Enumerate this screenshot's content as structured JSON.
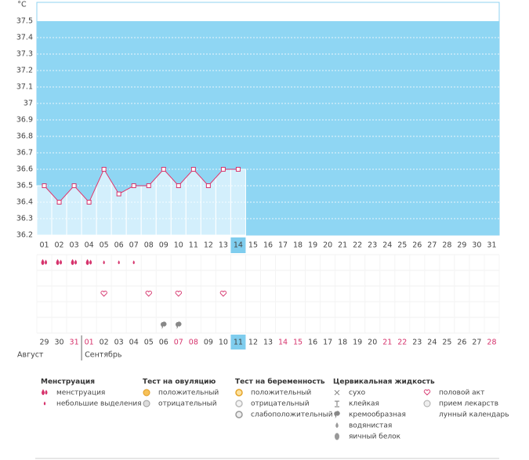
{
  "chart_data": {
    "type": "line",
    "unit": "°C",
    "categories": [
      "01",
      "02",
      "03",
      "04",
      "05",
      "06",
      "07",
      "08",
      "09",
      "10",
      "11",
      "12",
      "13",
      "14",
      "15",
      "16",
      "17",
      "18",
      "19",
      "20",
      "21",
      "22",
      "23",
      "24",
      "25",
      "26",
      "27",
      "28",
      "29",
      "30",
      "31"
    ],
    "series": [
      {
        "name": "temperature",
        "color": "#d6336c",
        "values": [
          36.5,
          36.4,
          36.5,
          36.4,
          36.6,
          36.45,
          36.5,
          36.5,
          36.6,
          36.5,
          36.6,
          36.5,
          36.6,
          36.6,
          null,
          null,
          null,
          null,
          null,
          null,
          null,
          null,
          null,
          null,
          null,
          null,
          null,
          null,
          null,
          null,
          null
        ]
      }
    ],
    "ylim": [
      36.2,
      37.6
    ],
    "yticks": [
      36.2,
      36.3,
      36.4,
      36.5,
      36.6,
      36.7,
      36.8,
      36.9,
      37,
      37.1,
      37.2,
      37.3,
      37.4,
      37.5
    ],
    "grid": true,
    "current_day": "14",
    "dates": [
      {
        "text": "29",
        "weekend": false,
        "month": "Август"
      },
      {
        "text": "30",
        "weekend": false
      },
      {
        "text": "31",
        "weekend": true
      },
      {
        "text": "01",
        "weekend": true,
        "month": "Сентябрь"
      },
      {
        "text": "02",
        "weekend": false
      },
      {
        "text": "03",
        "weekend": false
      },
      {
        "text": "04",
        "weekend": false
      },
      {
        "text": "05",
        "weekend": false
      },
      {
        "text": "06",
        "weekend": false
      },
      {
        "text": "07",
        "weekend": true
      },
      {
        "text": "08",
        "weekend": true
      },
      {
        "text": "09",
        "weekend": false
      },
      {
        "text": "10",
        "weekend": false
      },
      {
        "text": "11",
        "weekend": false
      },
      {
        "text": "12",
        "weekend": false
      },
      {
        "text": "13",
        "weekend": false
      },
      {
        "text": "14",
        "weekend": true
      },
      {
        "text": "15",
        "weekend": true
      },
      {
        "text": "16",
        "weekend": false
      },
      {
        "text": "17",
        "weekend": false
      },
      {
        "text": "18",
        "weekend": false
      },
      {
        "text": "19",
        "weekend": false
      },
      {
        "text": "20",
        "weekend": false
      },
      {
        "text": "21",
        "weekend": true
      },
      {
        "text": "22",
        "weekend": true
      },
      {
        "text": "23",
        "weekend": false
      },
      {
        "text": "24",
        "weekend": false
      },
      {
        "text": "25",
        "weekend": false
      },
      {
        "text": "26",
        "weekend": false
      },
      {
        "text": "27",
        "weekend": false
      },
      {
        "text": "28",
        "weekend": true
      }
    ],
    "symbols": [
      {
        "row": 0,
        "icon": "drop2",
        "days": [
          "01",
          "02",
          "03",
          "04"
        ]
      },
      {
        "row": 0,
        "icon": "drop",
        "days": [
          "05",
          "06",
          "07"
        ]
      },
      {
        "row": 2,
        "icon": "heart",
        "days": [
          "05",
          "08",
          "10",
          "13"
        ]
      },
      {
        "row": 4,
        "icon": "creamy",
        "days": [
          "09",
          "10"
        ]
      }
    ]
  },
  "legend": [
    {
      "title": "Менструация",
      "items": [
        {
          "icon": "drop2",
          "label": "менструация"
        },
        {
          "icon": "drop",
          "label": "небольшие выделения"
        }
      ]
    },
    {
      "title": "Тест на овуляцию",
      "items": [
        {
          "icon": "pos",
          "label": "положительный"
        },
        {
          "icon": "neg",
          "label": "отрицательный"
        }
      ]
    },
    {
      "title": "Тест на беременность",
      "items": [
        {
          "icon": "ppos",
          "label": "положительный"
        },
        {
          "icon": "pneg",
          "label": "отрицательный"
        },
        {
          "icon": "pweak",
          "label": "слабоположительный"
        }
      ]
    },
    {
      "title": "Цервикальная жидкость",
      "items": [
        {
          "icon": "dry",
          "label": "сухо"
        },
        {
          "icon": "sticky",
          "label": "клейкая"
        },
        {
          "icon": "creamy",
          "label": "кремообразная"
        },
        {
          "icon": "watery",
          "label": "водянистая"
        },
        {
          "icon": "egg",
          "label": "яичный белок"
        }
      ]
    },
    {
      "items": [
        {
          "icon": "heart",
          "label": "половой акт"
        },
        {
          "icon": "pill",
          "label": "прием лекарств"
        },
        {
          "icon": "moon",
          "label": "лунный календарь"
        }
      ]
    }
  ]
}
